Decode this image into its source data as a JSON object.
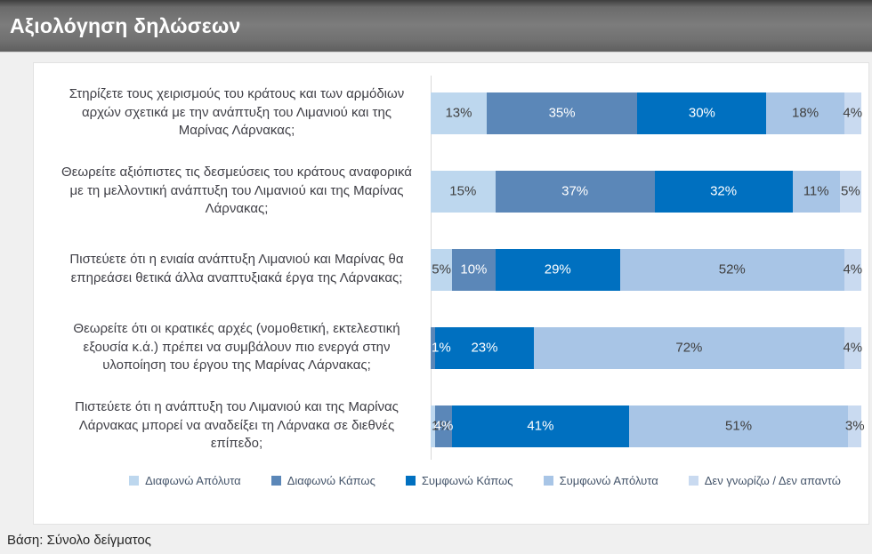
{
  "header": {
    "title": "Αξιολόγηση δηλώσεων"
  },
  "footer": {
    "base_note": "Βάση: Σύνολο δείγματος"
  },
  "chart_data": {
    "type": "bar",
    "orientation": "horizontal",
    "stacked": true,
    "value_suffix": "%",
    "xlim": [
      0,
      100
    ],
    "legend_position": "bottom",
    "grid": false,
    "categories": [
      "Στηρίζετε τους χειρισμούς του κράτους και των αρμόδιων αρχών σχετικά με την ανάπτυξη του Λιμανιού και της Μαρίνας Λάρνακας;",
      "Θεωρείτε αξιόπιστες τις δεσμεύσεις του κράτους αναφορικά με τη μελλοντική ανάπτυξη του Λιμανιού και της Μαρίνας Λάρνακας;",
      "Πιστεύετε ότι η ενιαία ανάπτυξη Λιμανιού και Μαρίνας θα επηρεάσει θετικά άλλα αναπτυξιακά έργα της Λάρνακας;",
      "Θεωρείτε ότι οι κρατικές αρχές (νομοθετική, εκτελεστική εξουσία κ.ά.) πρέπει να συμβάλουν πιο ενεργά στην υλοποίηση του έργου της Μαρίνας Λάρνακας;",
      "Πιστεύετε ότι η ανάπτυξη του Λιμανιού και της Μαρίνας Λάρνακας μπορεί να αναδείξει τη Λάρνακα σε διεθνές επίπεδο;"
    ],
    "series": [
      {
        "name": "Διαφωνώ Απόλυτα",
        "color": "#bdd7ee",
        "label_color": "#404040",
        "values": [
          13,
          15,
          5,
          0,
          1
        ]
      },
      {
        "name": "Διαφωνώ Κάπως",
        "color": "#5b87b8",
        "label_color": "#ffffff",
        "values": [
          35,
          37,
          10,
          1,
          4
        ]
      },
      {
        "name": "Συμφωνώ Κάπως",
        "color": "#0070c0",
        "label_color": "#ffffff",
        "values": [
          30,
          32,
          29,
          23,
          41
        ]
      },
      {
        "name": "Συμφωνώ Απόλυτα",
        "color": "#a8c5e6",
        "label_color": "#404040",
        "values": [
          18,
          11,
          52,
          72,
          51
        ]
      },
      {
        "name": "Δεν γνωρίζω / Δεν απαντώ",
        "color": "#c9daf0",
        "label_color": "#404040",
        "values": [
          4,
          5,
          4,
          4,
          3
        ]
      }
    ]
  }
}
